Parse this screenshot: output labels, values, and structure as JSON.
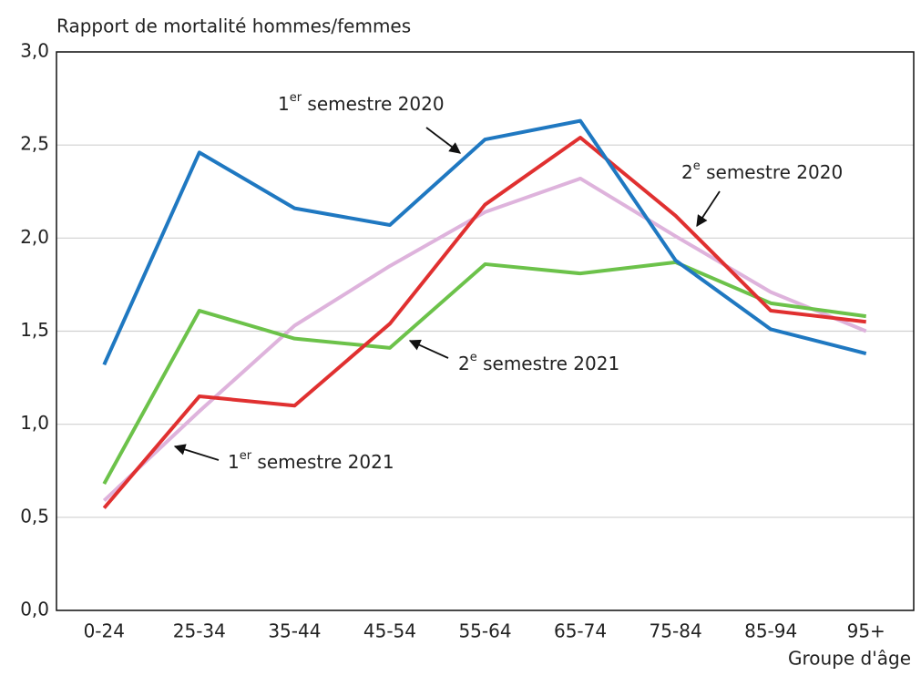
{
  "chart_data": {
    "type": "line",
    "y_label": "Rapport de mortalité hommes/femmes",
    "x_label": "Groupe d'âge",
    "categories": [
      "0-24",
      "25-34",
      "35-44",
      "45-54",
      "55-64",
      "65-74",
      "75-84",
      "85-94",
      "95+"
    ],
    "series": [
      {
        "name": "1er semestre 2020",
        "color": "#1f78c1",
        "values": [
          1.32,
          2.46,
          2.16,
          2.07,
          2.53,
          2.63,
          1.88,
          1.51,
          1.38
        ]
      },
      {
        "name": "2e semestre 2020",
        "color": "#e03030",
        "values": [
          0.55,
          1.15,
          1.1,
          1.54,
          2.18,
          2.54,
          2.12,
          1.61,
          1.55
        ]
      },
      {
        "name": "2e semestre 2021",
        "color": "#6cc24a",
        "values": [
          0.68,
          1.61,
          1.46,
          1.41,
          1.86,
          1.81,
          1.87,
          1.65,
          1.58
        ]
      },
      {
        "name": "1er semestre 2021",
        "color": "#deb3dc",
        "values": [
          0.59,
          1.07,
          1.53,
          1.85,
          2.14,
          2.32,
          2.01,
          1.71,
          1.5
        ]
      }
    ],
    "ylim": [
      0,
      3
    ],
    "yticks": [
      {
        "value": 0,
        "label": "0,0"
      },
      {
        "value": 0.5,
        "label": "0,5"
      },
      {
        "value": 1,
        "label": "1,0"
      },
      {
        "value": 1.5,
        "label": "1,5"
      },
      {
        "value": 2,
        "label": "2,0"
      },
      {
        "value": 2.5,
        "label": "2,5"
      },
      {
        "value": 3,
        "label": "3,0"
      }
    ],
    "grid": true
  }
}
